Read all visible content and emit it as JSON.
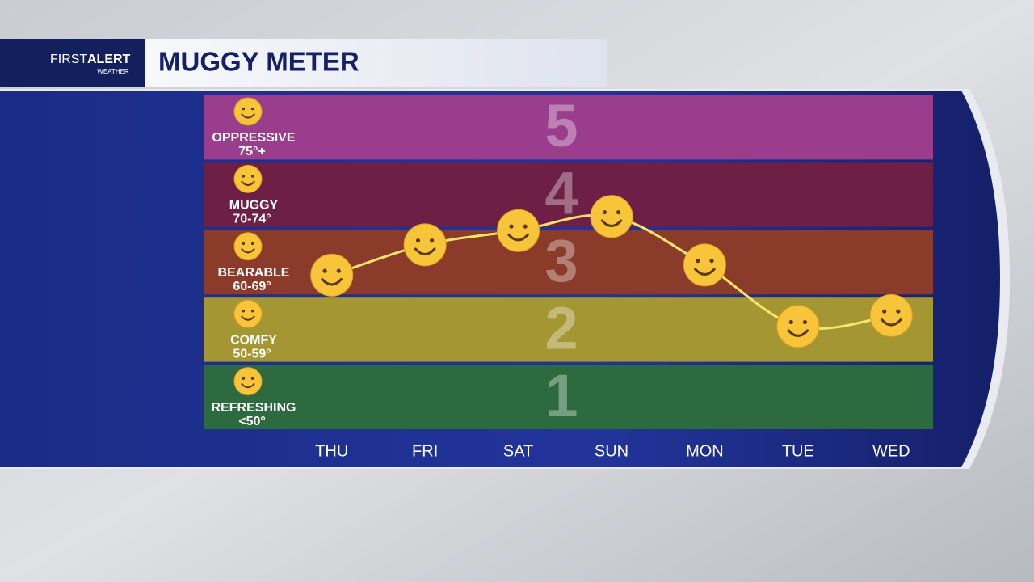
{
  "header": {
    "logo_first": "FIRST",
    "logo_alert": "ALERT",
    "logo_sub": "WEATHER"
  },
  "chart_data": {
    "type": "line",
    "title": "MUGGY METER",
    "categories": [
      "THU",
      "FRI",
      "SAT",
      "SUN",
      "MON",
      "TUE",
      "WED"
    ],
    "values": [
      2.81,
      3.26,
      3.47,
      3.68,
      2.96,
      2.05,
      2.21
    ],
    "color": "#f7e46a",
    "ylim": [
      0.5,
      5.5
    ],
    "yticks": [
      1,
      2,
      3,
      4,
      5
    ],
    "bands": [
      {
        "name": "REFRESHING",
        "range": "<50°",
        "color": "#2e6a3f"
      },
      {
        "name": "COMFY",
        "range": "50-59°",
        "color": "#a49632"
      },
      {
        "name": "BEARABLE",
        "range": "60-69°",
        "color": "#8b3b2a"
      },
      {
        "name": "MUGGY",
        "range": "70-74°",
        "color": "#6d1f46"
      },
      {
        "name": "OPPRESSIVE",
        "range": "75°+",
        "color": "#9a3d8d"
      }
    ]
  }
}
